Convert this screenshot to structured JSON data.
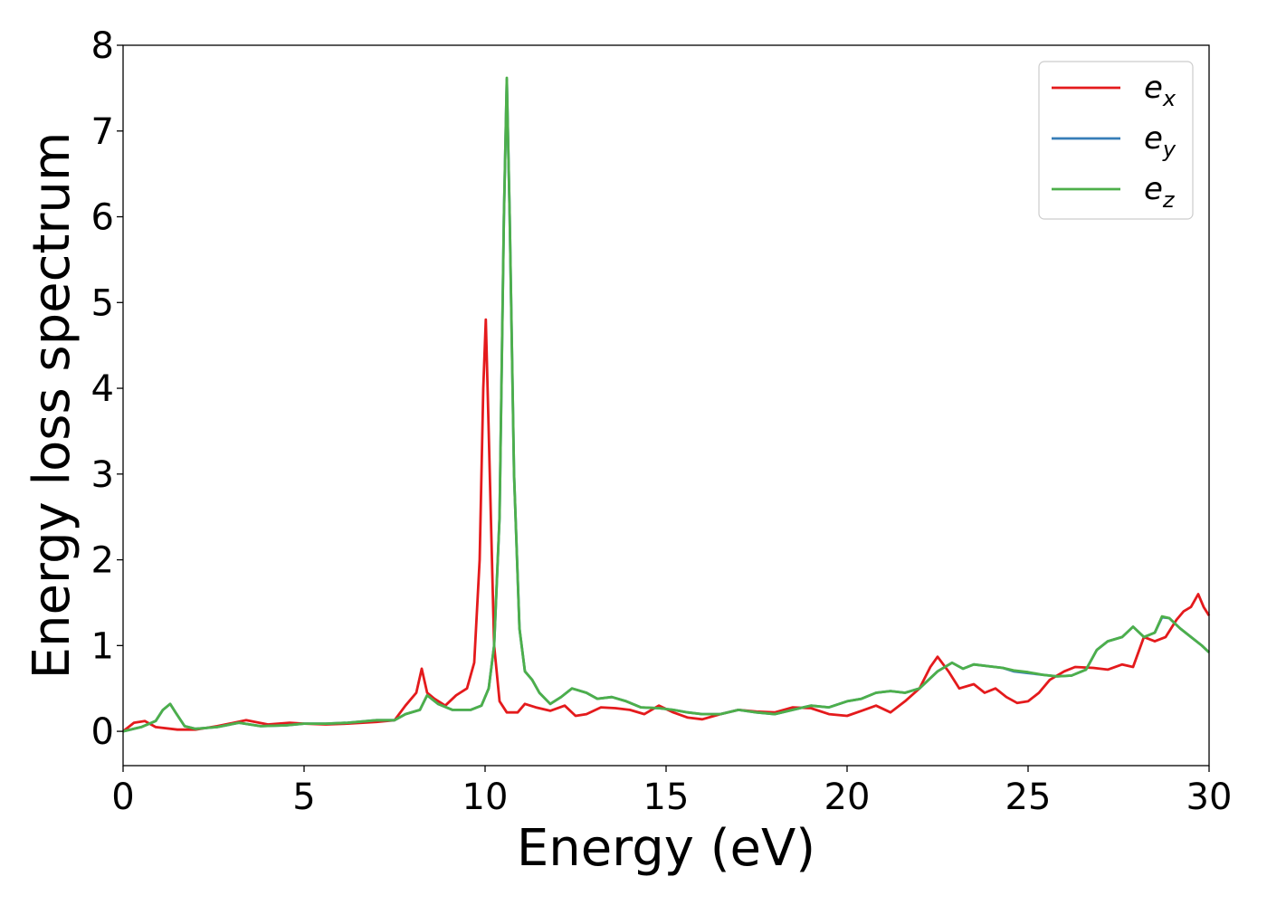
{
  "chart_data": {
    "type": "line",
    "title": "",
    "xlabel": "Energy (eV)",
    "ylabel": "Energy loss spectrum",
    "xlim": [
      0,
      30
    ],
    "ylim": [
      -0.4,
      8
    ],
    "xticks": [
      0,
      5,
      10,
      15,
      20,
      25,
      30
    ],
    "yticks": [
      0,
      1,
      2,
      3,
      4,
      5,
      6,
      7,
      8
    ],
    "grid": false,
    "legend_position": "top-right",
    "series": [
      {
        "name_base": "e",
        "name_sub": "x",
        "color": "#e41a1c",
        "points": [
          [
            0,
            0
          ],
          [
            0.3,
            0.1
          ],
          [
            0.6,
            0.12
          ],
          [
            0.9,
            0.05
          ],
          [
            1.5,
            0.02
          ],
          [
            2.0,
            0.02
          ],
          [
            2.6,
            0.06
          ],
          [
            3.4,
            0.13
          ],
          [
            4.0,
            0.08
          ],
          [
            4.6,
            0.1
          ],
          [
            5.0,
            0.09
          ],
          [
            5.6,
            0.08
          ],
          [
            6.2,
            0.09
          ],
          [
            7.0,
            0.11
          ],
          [
            7.5,
            0.13
          ],
          [
            7.8,
            0.3
          ],
          [
            8.1,
            0.45
          ],
          [
            8.25,
            0.73
          ],
          [
            8.4,
            0.45
          ],
          [
            8.6,
            0.38
          ],
          [
            8.9,
            0.3
          ],
          [
            9.2,
            0.42
          ],
          [
            9.5,
            0.5
          ],
          [
            9.7,
            0.8
          ],
          [
            9.85,
            2.0
          ],
          [
            9.95,
            4.0
          ],
          [
            10.02,
            4.8
          ],
          [
            10.1,
            3.5
          ],
          [
            10.25,
            1.0
          ],
          [
            10.4,
            0.35
          ],
          [
            10.6,
            0.22
          ],
          [
            10.9,
            0.22
          ],
          [
            11.1,
            0.32
          ],
          [
            11.4,
            0.28
          ],
          [
            11.8,
            0.24
          ],
          [
            12.2,
            0.3
          ],
          [
            12.5,
            0.18
          ],
          [
            12.8,
            0.2
          ],
          [
            13.2,
            0.28
          ],
          [
            13.6,
            0.27
          ],
          [
            14.0,
            0.25
          ],
          [
            14.4,
            0.2
          ],
          [
            14.8,
            0.3
          ],
          [
            15.2,
            0.22
          ],
          [
            15.6,
            0.16
          ],
          [
            16.0,
            0.14
          ],
          [
            16.5,
            0.2
          ],
          [
            17.0,
            0.25
          ],
          [
            17.5,
            0.23
          ],
          [
            18.0,
            0.22
          ],
          [
            18.5,
            0.28
          ],
          [
            19.0,
            0.27
          ],
          [
            19.5,
            0.2
          ],
          [
            20.0,
            0.18
          ],
          [
            20.4,
            0.24
          ],
          [
            20.8,
            0.3
          ],
          [
            21.2,
            0.22
          ],
          [
            21.6,
            0.35
          ],
          [
            22.0,
            0.5
          ],
          [
            22.3,
            0.75
          ],
          [
            22.5,
            0.87
          ],
          [
            22.8,
            0.7
          ],
          [
            23.1,
            0.5
          ],
          [
            23.5,
            0.55
          ],
          [
            23.8,
            0.45
          ],
          [
            24.1,
            0.5
          ],
          [
            24.4,
            0.4
          ],
          [
            24.7,
            0.33
          ],
          [
            25.0,
            0.35
          ],
          [
            25.3,
            0.45
          ],
          [
            25.6,
            0.6
          ],
          [
            26.0,
            0.7
          ],
          [
            26.3,
            0.75
          ],
          [
            26.8,
            0.74
          ],
          [
            27.2,
            0.72
          ],
          [
            27.6,
            0.78
          ],
          [
            27.9,
            0.75
          ],
          [
            28.2,
            1.1
          ],
          [
            28.5,
            1.05
          ],
          [
            28.8,
            1.1
          ],
          [
            29.1,
            1.3
          ],
          [
            29.3,
            1.4
          ],
          [
            29.5,
            1.45
          ],
          [
            29.7,
            1.6
          ],
          [
            29.85,
            1.45
          ],
          [
            30.0,
            1.35
          ]
        ]
      },
      {
        "name_base": "e",
        "name_sub": "y",
        "color": "#377eb8",
        "points": [
          [
            0,
            0
          ],
          [
            0.5,
            0.05
          ],
          [
            0.9,
            0.12
          ],
          [
            1.1,
            0.25
          ],
          [
            1.3,
            0.32
          ],
          [
            1.45,
            0.22
          ],
          [
            1.7,
            0.06
          ],
          [
            2.0,
            0.03
          ],
          [
            2.6,
            0.05
          ],
          [
            3.2,
            0.1
          ],
          [
            3.8,
            0.06
          ],
          [
            4.5,
            0.07
          ],
          [
            5.0,
            0.09
          ],
          [
            5.6,
            0.09
          ],
          [
            6.2,
            0.1
          ],
          [
            7.0,
            0.13
          ],
          [
            7.5,
            0.13
          ],
          [
            7.8,
            0.2
          ],
          [
            8.2,
            0.25
          ],
          [
            8.4,
            0.42
          ],
          [
            8.7,
            0.32
          ],
          [
            9.1,
            0.25
          ],
          [
            9.6,
            0.25
          ],
          [
            9.9,
            0.3
          ],
          [
            10.1,
            0.5
          ],
          [
            10.25,
            1.0
          ],
          [
            10.4,
            2.5
          ],
          [
            10.52,
            6.0
          ],
          [
            10.6,
            7.6
          ],
          [
            10.68,
            6.0
          ],
          [
            10.8,
            3.0
          ],
          [
            10.95,
            1.2
          ],
          [
            11.1,
            0.7
          ],
          [
            11.3,
            0.6
          ],
          [
            11.5,
            0.45
          ],
          [
            11.8,
            0.32
          ],
          [
            12.1,
            0.4
          ],
          [
            12.4,
            0.5
          ],
          [
            12.8,
            0.45
          ],
          [
            13.1,
            0.38
          ],
          [
            13.5,
            0.4
          ],
          [
            13.9,
            0.35
          ],
          [
            14.3,
            0.28
          ],
          [
            14.8,
            0.27
          ],
          [
            15.2,
            0.25
          ],
          [
            15.6,
            0.22
          ],
          [
            16.0,
            0.2
          ],
          [
            16.5,
            0.2
          ],
          [
            17.0,
            0.25
          ],
          [
            17.5,
            0.22
          ],
          [
            18.0,
            0.2
          ],
          [
            18.5,
            0.25
          ],
          [
            19.0,
            0.3
          ],
          [
            19.5,
            0.28
          ],
          [
            20.0,
            0.35
          ],
          [
            20.4,
            0.38
          ],
          [
            20.8,
            0.45
          ],
          [
            21.2,
            0.47
          ],
          [
            21.6,
            0.45
          ],
          [
            22.0,
            0.5
          ],
          [
            22.5,
            0.7
          ],
          [
            22.9,
            0.8
          ],
          [
            23.2,
            0.73
          ],
          [
            23.5,
            0.78
          ],
          [
            23.9,
            0.76
          ],
          [
            24.3,
            0.74
          ],
          [
            24.6,
            0.7
          ],
          [
            25.0,
            0.68
          ],
          [
            25.4,
            0.66
          ],
          [
            25.8,
            0.64
          ],
          [
            26.2,
            0.65
          ],
          [
            26.6,
            0.72
          ],
          [
            26.9,
            0.95
          ],
          [
            27.2,
            1.05
          ],
          [
            27.6,
            1.1
          ],
          [
            27.9,
            1.22
          ],
          [
            28.2,
            1.1
          ],
          [
            28.5,
            1.15
          ],
          [
            28.7,
            1.33
          ],
          [
            28.9,
            1.32
          ],
          [
            29.2,
            1.2
          ],
          [
            29.5,
            1.1
          ],
          [
            29.8,
            1.0
          ],
          [
            30.0,
            0.92
          ]
        ]
      },
      {
        "name_base": "e",
        "name_sub": "z",
        "color": "#4daf4a",
        "points": [
          [
            0,
            0
          ],
          [
            0.5,
            0.05
          ],
          [
            0.9,
            0.12
          ],
          [
            1.1,
            0.25
          ],
          [
            1.3,
            0.32
          ],
          [
            1.45,
            0.22
          ],
          [
            1.7,
            0.06
          ],
          [
            2.0,
            0.03
          ],
          [
            2.6,
            0.05
          ],
          [
            3.2,
            0.1
          ],
          [
            3.8,
            0.06
          ],
          [
            4.5,
            0.07
          ],
          [
            5.0,
            0.09
          ],
          [
            5.6,
            0.09
          ],
          [
            6.2,
            0.1
          ],
          [
            7.0,
            0.13
          ],
          [
            7.5,
            0.13
          ],
          [
            7.8,
            0.2
          ],
          [
            8.2,
            0.25
          ],
          [
            8.4,
            0.42
          ],
          [
            8.7,
            0.32
          ],
          [
            9.1,
            0.25
          ],
          [
            9.6,
            0.25
          ],
          [
            9.9,
            0.3
          ],
          [
            10.1,
            0.5
          ],
          [
            10.25,
            1.0
          ],
          [
            10.4,
            2.5
          ],
          [
            10.52,
            6.0
          ],
          [
            10.6,
            7.62
          ],
          [
            10.68,
            6.0
          ],
          [
            10.8,
            3.0
          ],
          [
            10.95,
            1.2
          ],
          [
            11.1,
            0.7
          ],
          [
            11.3,
            0.6
          ],
          [
            11.5,
            0.45
          ],
          [
            11.8,
            0.32
          ],
          [
            12.1,
            0.4
          ],
          [
            12.4,
            0.5
          ],
          [
            12.8,
            0.45
          ],
          [
            13.1,
            0.38
          ],
          [
            13.5,
            0.4
          ],
          [
            13.9,
            0.35
          ],
          [
            14.3,
            0.28
          ],
          [
            14.8,
            0.27
          ],
          [
            15.2,
            0.25
          ],
          [
            15.6,
            0.22
          ],
          [
            16.0,
            0.2
          ],
          [
            16.5,
            0.2
          ],
          [
            17.0,
            0.25
          ],
          [
            17.5,
            0.22
          ],
          [
            18.0,
            0.2
          ],
          [
            18.5,
            0.25
          ],
          [
            19.0,
            0.3
          ],
          [
            19.5,
            0.28
          ],
          [
            20.0,
            0.35
          ],
          [
            20.4,
            0.38
          ],
          [
            20.8,
            0.45
          ],
          [
            21.2,
            0.47
          ],
          [
            21.6,
            0.45
          ],
          [
            22.0,
            0.5
          ],
          [
            22.5,
            0.7
          ],
          [
            22.9,
            0.8
          ],
          [
            23.2,
            0.73
          ],
          [
            23.5,
            0.78
          ],
          [
            23.9,
            0.76
          ],
          [
            24.3,
            0.74
          ],
          [
            24.6,
            0.71
          ],
          [
            25.0,
            0.69
          ],
          [
            25.4,
            0.66
          ],
          [
            25.8,
            0.64
          ],
          [
            26.2,
            0.65
          ],
          [
            26.6,
            0.72
          ],
          [
            26.9,
            0.95
          ],
          [
            27.2,
            1.05
          ],
          [
            27.6,
            1.1
          ],
          [
            27.9,
            1.22
          ],
          [
            28.2,
            1.1
          ],
          [
            28.5,
            1.15
          ],
          [
            28.7,
            1.34
          ],
          [
            28.9,
            1.32
          ],
          [
            29.2,
            1.2
          ],
          [
            29.5,
            1.1
          ],
          [
            29.8,
            1.0
          ],
          [
            30.0,
            0.92
          ]
        ]
      }
    ]
  }
}
